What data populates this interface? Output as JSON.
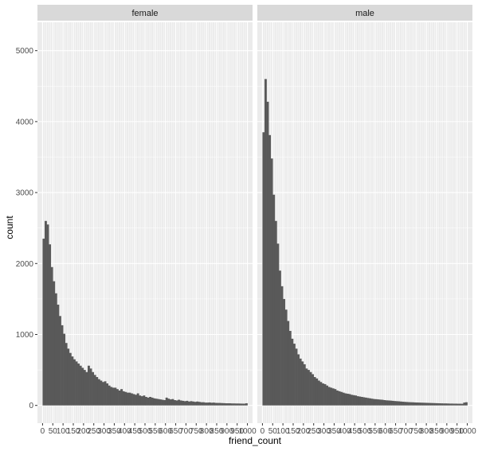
{
  "chart_data": {
    "type": "bar",
    "subtype": "histogram-faceted",
    "xlabel": "friend_count",
    "ylabel": "count",
    "xlim": [
      -25,
      1025
    ],
    "ylim": [
      -250,
      5400
    ],
    "bin_width": 10,
    "x_ticks": [
      0,
      50,
      100,
      150,
      200,
      250,
      300,
      350,
      400,
      450,
      500,
      550,
      600,
      650,
      700,
      750,
      800,
      850,
      900,
      950,
      1000
    ],
    "x_tick_labels": [
      "0",
      "50",
      "100",
      "150",
      "200",
      "250",
      "300",
      "350",
      "400",
      "450",
      "500",
      "550",
      "600",
      "650",
      "700",
      "750",
      "800",
      "850",
      "900",
      "950",
      "1000"
    ],
    "y_ticks": [
      0,
      1000,
      2000,
      3000,
      4000,
      5000
    ],
    "y_tick_labels": [
      "0",
      "1000",
      "2000",
      "3000",
      "4000",
      "5000"
    ],
    "bar_color": "#595959",
    "panel_background": "#ebebeb",
    "strip_background": "#d9d9d9",
    "grid": true,
    "panels": [
      {
        "name": "female",
        "bin_starts": [
          0,
          10,
          20,
          30,
          40,
          50,
          60,
          70,
          80,
          90,
          100,
          110,
          120,
          130,
          140,
          150,
          160,
          170,
          180,
          190,
          200,
          210,
          220,
          230,
          240,
          250,
          260,
          270,
          280,
          290,
          300,
          310,
          320,
          330,
          340,
          350,
          360,
          370,
          380,
          390,
          400,
          410,
          420,
          430,
          440,
          450,
          460,
          470,
          480,
          490,
          500,
          510,
          520,
          530,
          540,
          550,
          560,
          570,
          580,
          590,
          600,
          610,
          620,
          630,
          640,
          650,
          660,
          670,
          680,
          690,
          700,
          710,
          720,
          730,
          740,
          750,
          760,
          770,
          780,
          790,
          800,
          810,
          820,
          830,
          840,
          850,
          860,
          870,
          880,
          890,
          900,
          910,
          920,
          930,
          940,
          950,
          960,
          970,
          980,
          990
        ],
        "counts": [
          2350,
          2600,
          2550,
          2270,
          1950,
          1750,
          1580,
          1420,
          1260,
          1130,
          1010,
          880,
          800,
          740,
          690,
          650,
          620,
          590,
          560,
          530,
          500,
          470,
          560,
          520,
          470,
          430,
          400,
          370,
          350,
          330,
          340,
          310,
          280,
          260,
          250,
          250,
          230,
          210,
          230,
          200,
          190,
          180,
          180,
          170,
          160,
          150,
          170,
          140,
          130,
          140,
          120,
          110,
          120,
          110,
          100,
          95,
          90,
          85,
          80,
          75,
          110,
          95,
          85,
          90,
          75,
          70,
          80,
          70,
          65,
          60,
          65,
          55,
          60,
          55,
          50,
          55,
          50,
          45,
          45,
          40,
          40,
          42,
          38,
          40,
          36,
          35,
          35,
          33,
          32,
          30,
          30,
          30,
          28,
          28,
          27,
          27,
          26,
          25,
          25,
          30
        ]
      },
      {
        "name": "male",
        "bin_starts": [
          0,
          10,
          20,
          30,
          40,
          50,
          60,
          70,
          80,
          90,
          100,
          110,
          120,
          130,
          140,
          150,
          160,
          170,
          180,
          190,
          200,
          210,
          220,
          230,
          240,
          250,
          260,
          270,
          280,
          290,
          300,
          310,
          320,
          330,
          340,
          350,
          360,
          370,
          380,
          390,
          400,
          410,
          420,
          430,
          440,
          450,
          460,
          470,
          480,
          490,
          500,
          510,
          520,
          530,
          540,
          550,
          560,
          570,
          580,
          590,
          600,
          610,
          620,
          630,
          640,
          650,
          660,
          670,
          680,
          690,
          700,
          710,
          720,
          730,
          740,
          750,
          760,
          770,
          780,
          790,
          800,
          810,
          820,
          830,
          840,
          850,
          860,
          870,
          880,
          890,
          900,
          910,
          920,
          930,
          940,
          950,
          960,
          970,
          980,
          990
        ],
        "counts": [
          3850,
          4600,
          4280,
          3810,
          3480,
          2970,
          2600,
          2280,
          1900,
          1680,
          1500,
          1350,
          1190,
          1050,
          940,
          870,
          800,
          720,
          660,
          620,
          580,
          520,
          500,
          470,
          440,
          400,
          380,
          350,
          330,
          310,
          300,
          280,
          260,
          250,
          240,
          230,
          210,
          200,
          190,
          180,
          170,
          165,
          160,
          150,
          145,
          140,
          130,
          125,
          120,
          115,
          110,
          105,
          100,
          95,
          90,
          88,
          85,
          82,
          80,
          75,
          72,
          70,
          68,
          65,
          62,
          60,
          58,
          55,
          52,
          50,
          48,
          46,
          45,
          44,
          42,
          41,
          40,
          39,
          38,
          37,
          36,
          35,
          34,
          33,
          32,
          31,
          30,
          29,
          28,
          28,
          27,
          26,
          26,
          25,
          25,
          24,
          24,
          23,
          40,
          45
        ]
      }
    ]
  }
}
